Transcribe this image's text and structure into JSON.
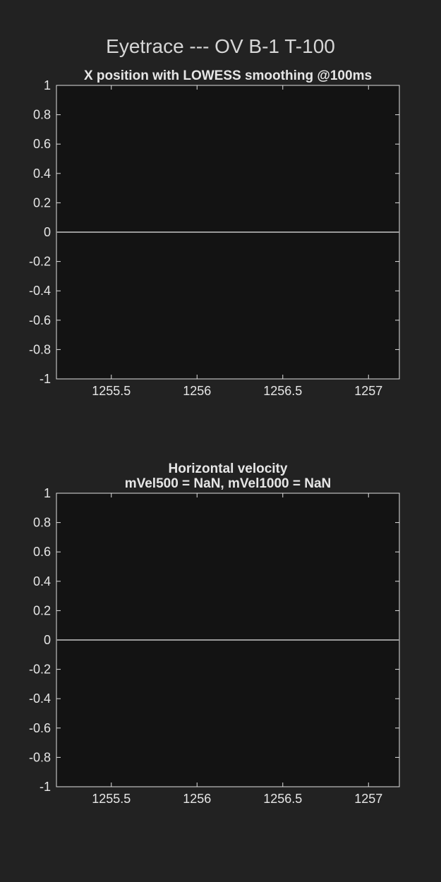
{
  "figure": {
    "suptitle": "Eyetrace --- OV B-1 T-100"
  },
  "chart_data": [
    {
      "type": "line",
      "title": "X position with LOWESS smoothing @100ms",
      "title_lines": [
        "X position with LOWESS smoothing @100ms"
      ],
      "xlabel": "",
      "ylabel": "",
      "xlim": [
        1255.18,
        1257.18
      ],
      "ylim": [
        -1,
        1
      ],
      "xticks": [
        1255.5,
        1256,
        1256.5,
        1257
      ],
      "xtick_labels": [
        "1255.5",
        "1256",
        "1256.5",
        "1257"
      ],
      "yticks": [
        1,
        0.8,
        0.6,
        0.4,
        0.2,
        0,
        -0.2,
        -0.4,
        -0.6,
        -0.8,
        -1
      ],
      "ytick_labels": [
        "1",
        "0.8",
        "0.6",
        "0.4",
        "0.2",
        "0",
        "-0.2",
        "-0.4",
        "-0.6",
        "-0.8",
        "-1"
      ],
      "grid": false,
      "series": [
        {
          "x": [
            1255.18,
            1257.18
          ],
          "y": [
            0,
            0
          ],
          "color": "#9a9a9a"
        }
      ]
    },
    {
      "type": "line",
      "title": "Horizontal velocity mVel500 = NaN, mVel1000 = NaN",
      "title_lines": [
        "Horizontal velocity",
        "mVel500 = NaN, mVel1000 = NaN"
      ],
      "xlabel": "",
      "ylabel": "",
      "xlim": [
        1255.18,
        1257.18
      ],
      "ylim": [
        -1,
        1
      ],
      "xticks": [
        1255.5,
        1256,
        1256.5,
        1257
      ],
      "xtick_labels": [
        "1255.5",
        "1256",
        "1256.5",
        "1257"
      ],
      "yticks": [
        1,
        0.8,
        0.6,
        0.4,
        0.2,
        0,
        -0.2,
        -0.4,
        -0.6,
        -0.8,
        -1
      ],
      "ytick_labels": [
        "1",
        "0.8",
        "0.6",
        "0.4",
        "0.2",
        "0",
        "-0.2",
        "-0.4",
        "-0.6",
        "-0.8",
        "-1"
      ],
      "grid": false,
      "series": [
        {
          "x": [
            1255.18,
            1257.18
          ],
          "y": [
            0,
            0
          ],
          "color": "#9a9a9a"
        }
      ]
    }
  ]
}
